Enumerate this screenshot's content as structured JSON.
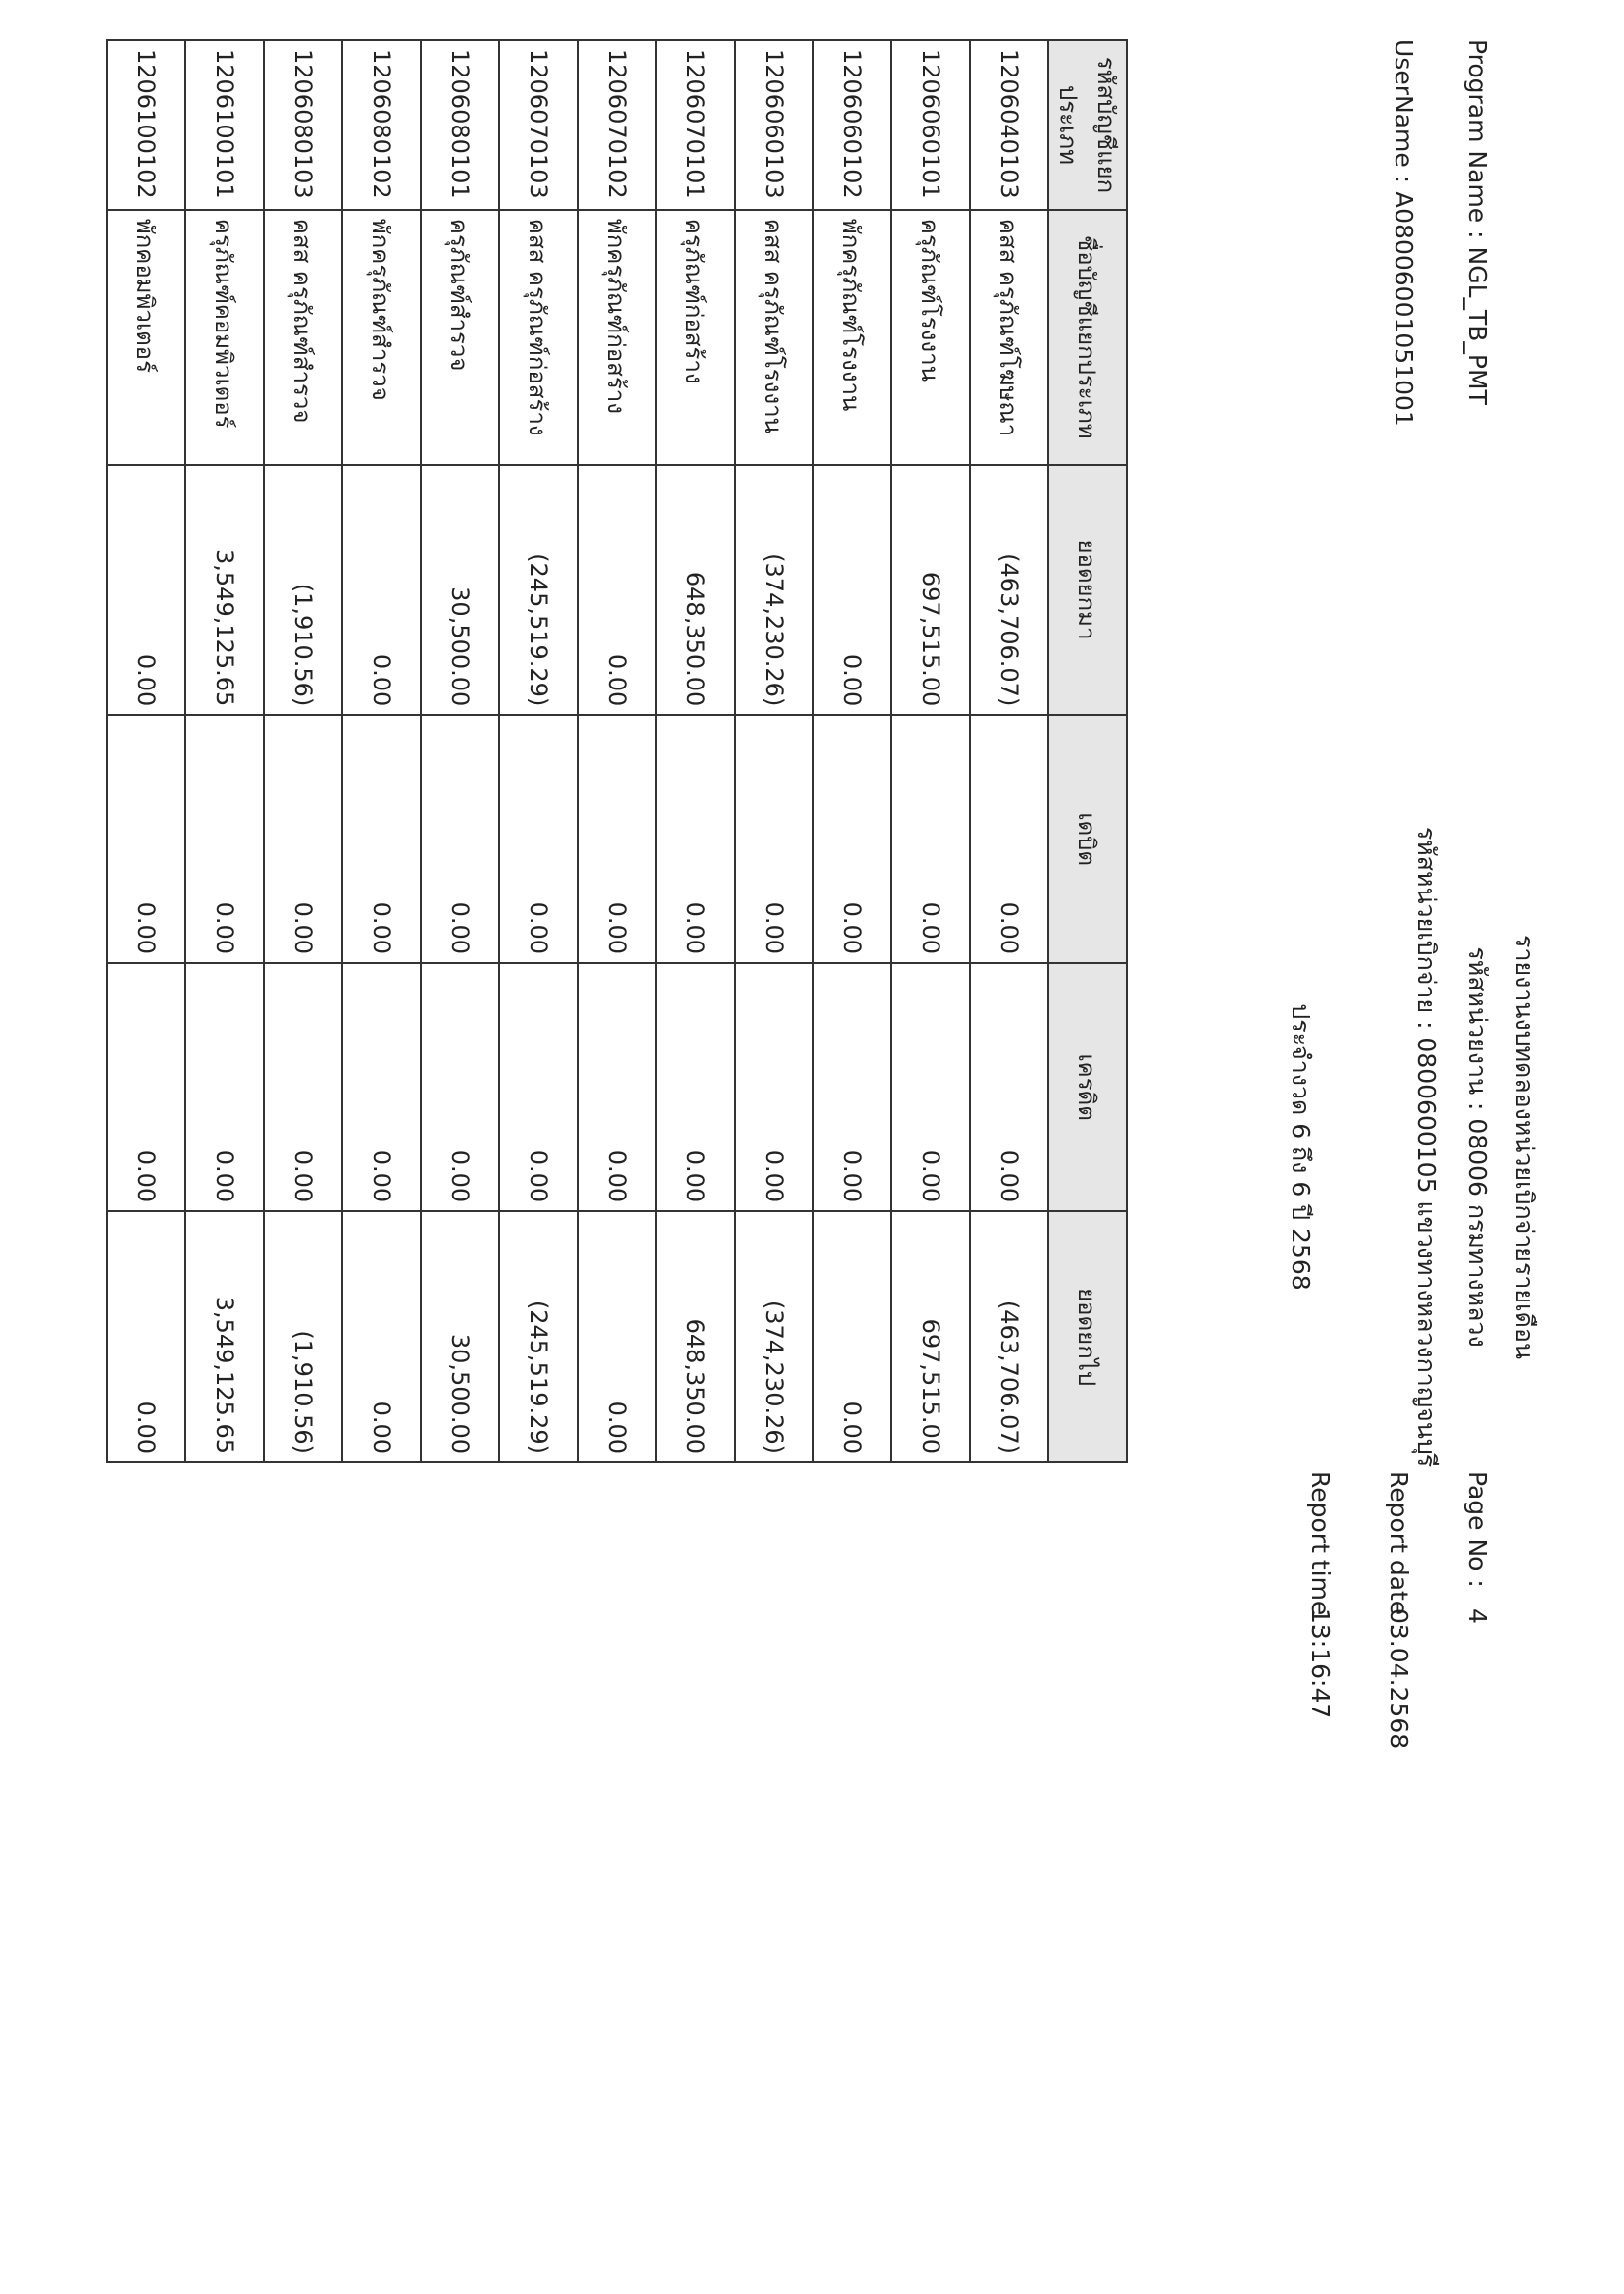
{
  "header": {
    "title": "รายงานงบทดลองหน่วยเบิกจ่ายรายเดือน",
    "agency": "รหัสหน่วยงาน : 08006 กรมทางหลวง",
    "disbursing_unit": "รหัสหน่วยเบิกจ่าย : 0800600105 แขวงทางหลวงกาญจนบุรี",
    "period": "ประจำงวด 6 ถึง 6 ปี 2568",
    "program_name": "Program Name : NGL_TB_PMT",
    "user_name": "UserName : A0800600105100‌1",
    "page_no_label": "Page No :",
    "page_no": "4",
    "report_date_label": "Report date :",
    "report_date": "03.04.2568",
    "report_time_label": "Report time :",
    "report_time": "13:16:47"
  },
  "table": {
    "columns": [
      "รหัสบัญชีแยกประเภท",
      "ชื่อบัญชีแยกประเภท",
      "ยอดยกมา",
      "เดบิต",
      "เครดิต",
      "ยอดยกไป"
    ],
    "rows": [
      [
        "1206040103",
        "คสส ครุภัณฑ์โฆษณา",
        "(463,706.07)",
        "0.00",
        "0.00",
        "(463,706.07)"
      ],
      [
        "1206060101",
        "ครุภัณฑ์โรงงาน",
        "697,515.00",
        "0.00",
        "0.00",
        "697,515.00"
      ],
      [
        "1206060102",
        "พักครุภัณฑ์โรงงาน",
        "0.00",
        "0.00",
        "0.00",
        "0.00"
      ],
      [
        "1206060103",
        "คสส ครุภัณฑ์โรงงาน",
        "(374,230.26)",
        "0.00",
        "0.00",
        "(374,230.26)"
      ],
      [
        "1206070101",
        "ครุภัณฑ์ก่อสร้าง",
        "648,350.00",
        "0.00",
        "0.00",
        "648,350.00"
      ],
      [
        "1206070102",
        "พักครุภัณฑ์ก่อสร้าง",
        "0.00",
        "0.00",
        "0.00",
        "0.00"
      ],
      [
        "1206070103",
        "คสส ครุภัณฑ์ก่อสร้าง",
        "(245,519.29)",
        "0.00",
        "0.00",
        "(245,519.29)"
      ],
      [
        "1206080101",
        "ครุภัณฑ์สำรวจ",
        "30,500.00",
        "0.00",
        "0.00",
        "30,500.00"
      ],
      [
        "1206080102",
        "พักครุภัณฑ์สำรวจ",
        "0.00",
        "0.00",
        "0.00",
        "0.00"
      ],
      [
        "1206080103",
        "คสส ครุภัณฑ์สำรวจ",
        "(1,910.56)",
        "0.00",
        "0.00",
        "(1,910.56)"
      ],
      [
        "1206100101",
        "ครุภัณฑ์คอมพิวเตอร์",
        "3,549,125.65",
        "0.00",
        "0.00",
        "3,549,125.65"
      ],
      [
        "1206100102",
        "พักคอมพิวเตอร์",
        "0.00",
        "0.00",
        "0.00",
        "0.00"
      ]
    ]
  }
}
